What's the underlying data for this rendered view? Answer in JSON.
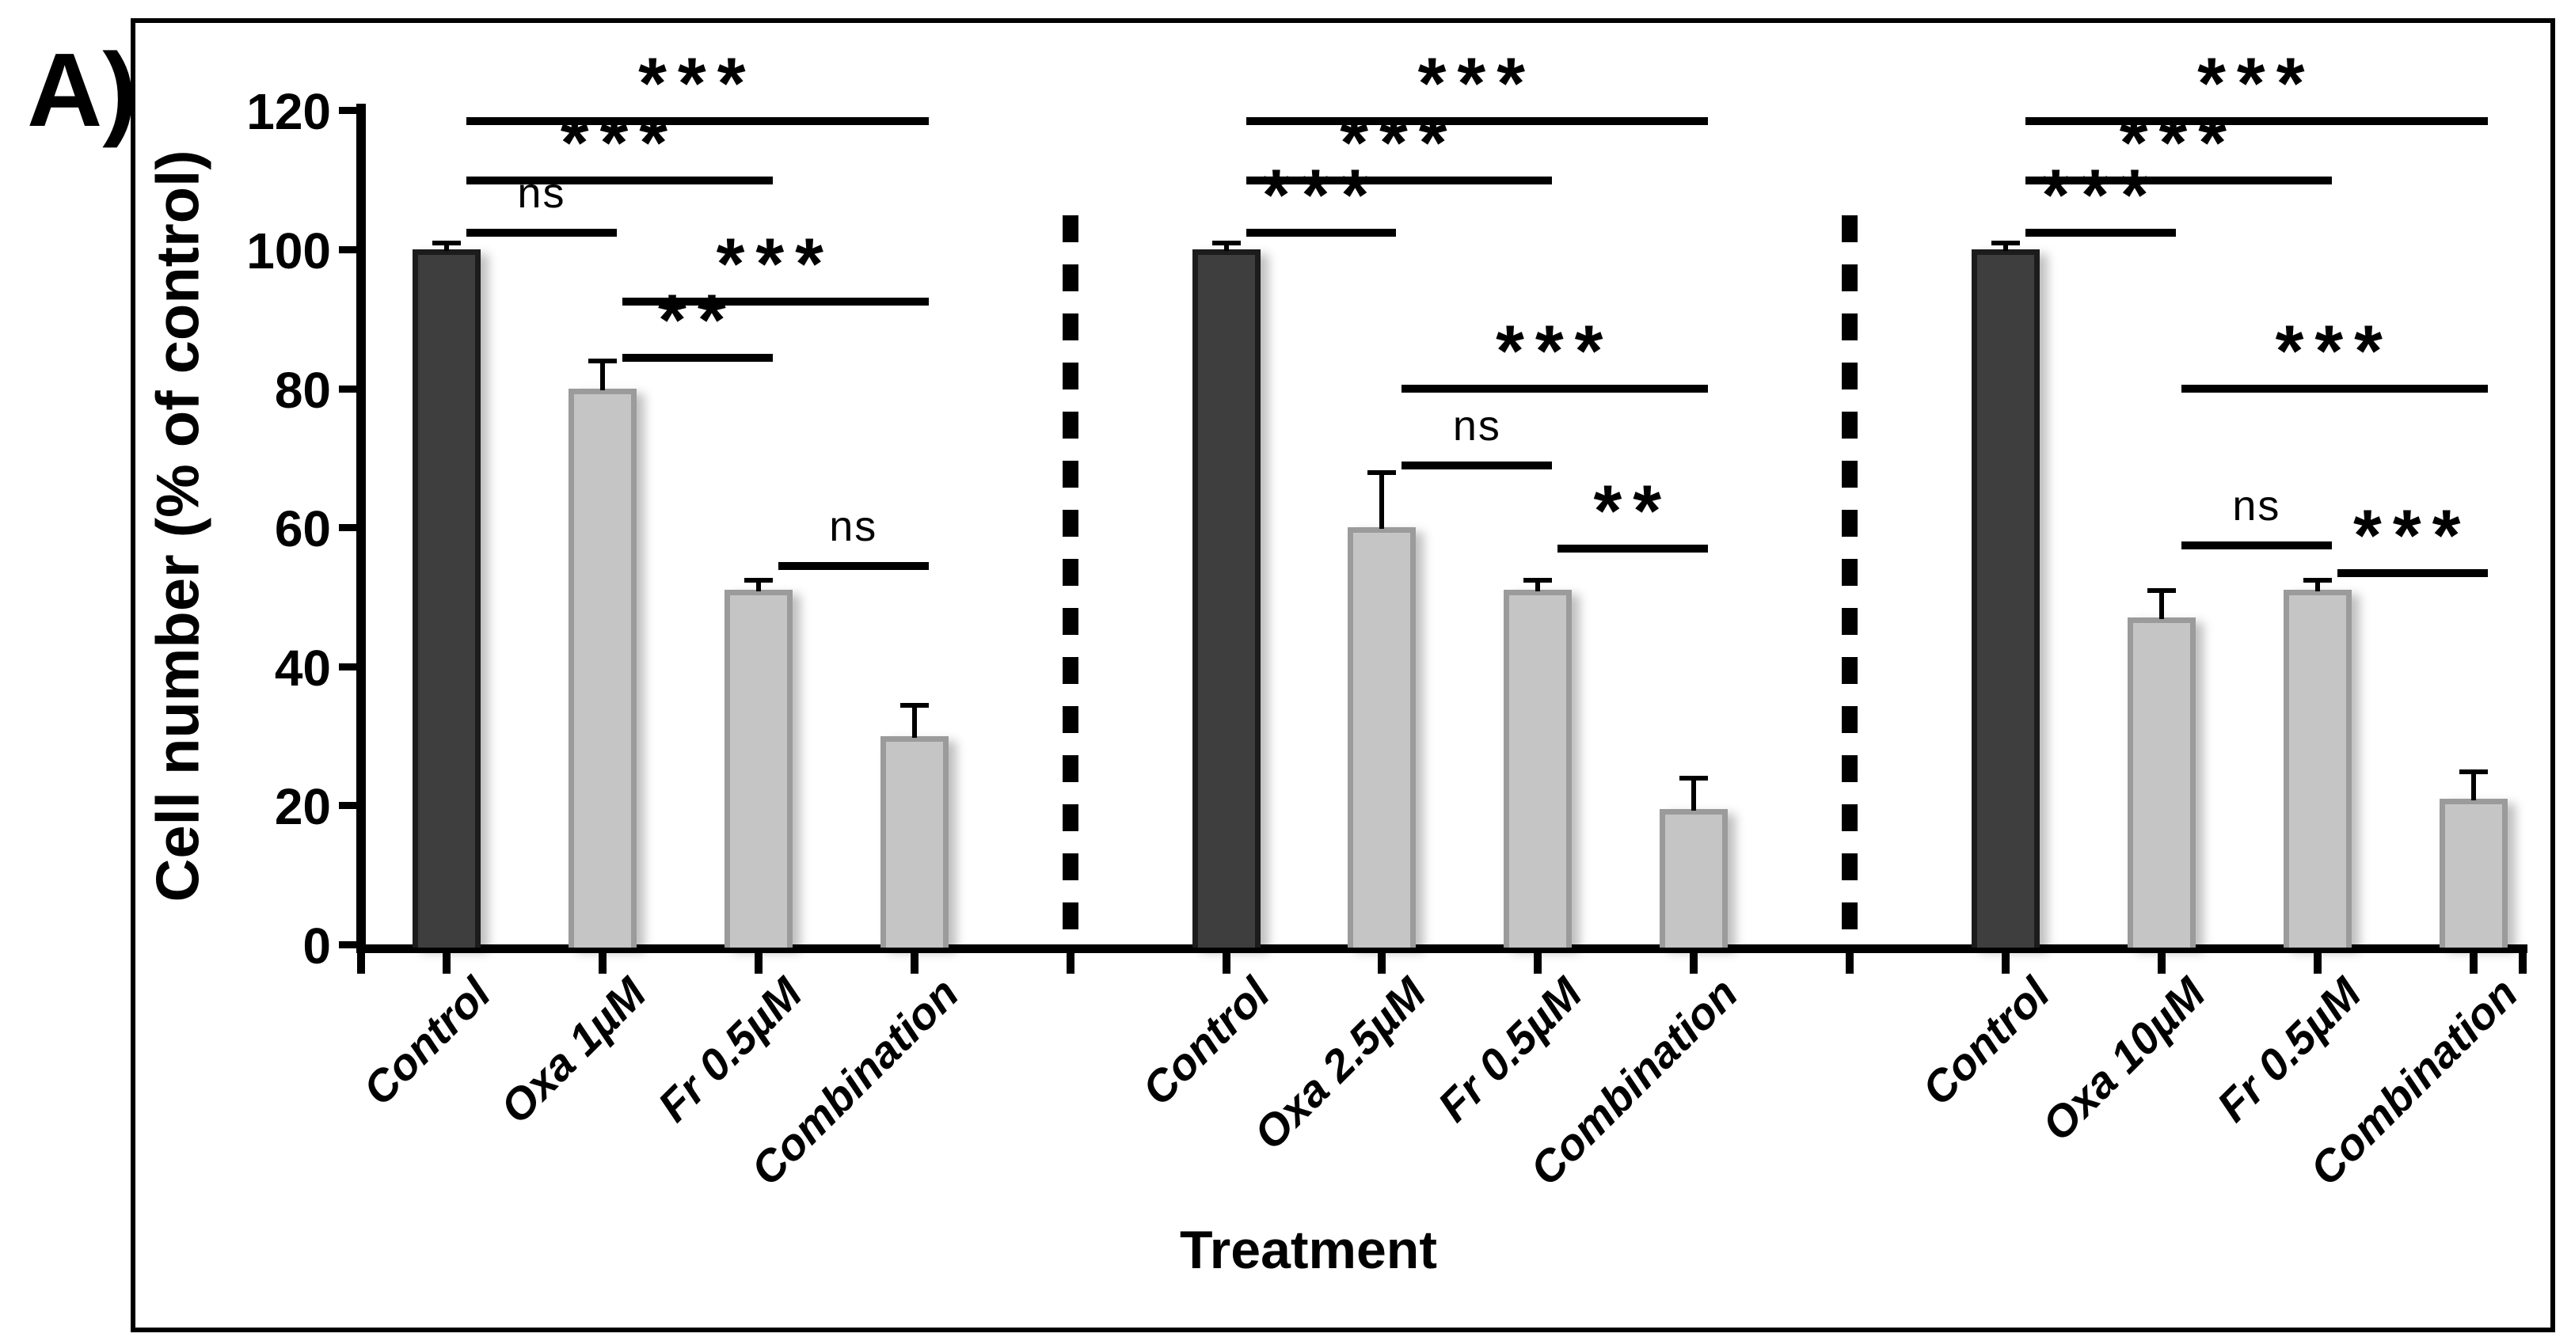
{
  "figure_label": "A)",
  "axes": {
    "y_title": "Cell number (% of control)",
    "x_title": "Treatment"
  },
  "colors": {
    "control_fill": "#3E3E3E",
    "control_border": "#1C1C1C",
    "treatment_fill": "#C5C5C5",
    "treatment_border": "#9B9B9B",
    "axis_black": "#000000"
  },
  "chart_data": {
    "type": "bar",
    "title": "",
    "xlabel": "Treatment",
    "ylabel": "Cell number (% of control)",
    "ylim": [
      0,
      120
    ],
    "yticks": [
      0,
      20,
      40,
      60,
      80,
      100,
      120
    ],
    "grid": false,
    "legend": "none",
    "group_separator_style": "vertical dashed line",
    "groups": [
      {
        "categories": [
          "Control",
          "Oxa 1µM",
          "Fr 0.5µM",
          "Combination"
        ],
        "values": [
          100,
          80,
          51,
          30
        ],
        "errors": [
          1,
          4,
          1.5,
          4.5
        ],
        "bar_roles": [
          "control",
          "treatment",
          "treatment",
          "treatment"
        ],
        "significance": [
          {
            "from": 0,
            "to": 1,
            "label": "ns",
            "height": 103
          },
          {
            "from": 0,
            "to": 2,
            "label": "***",
            "height": 110.5
          },
          {
            "from": 0,
            "to": 3,
            "label": "***",
            "height": 119
          },
          {
            "from": 1,
            "to": 2,
            "label": "**",
            "height": 85
          },
          {
            "from": 1,
            "to": 3,
            "label": "***",
            "height": 93
          },
          {
            "from": 2,
            "to": 3,
            "label": "ns",
            "height": 55
          }
        ]
      },
      {
        "categories": [
          "Control",
          "Oxa 2.5µM",
          "Fr 0.5µM",
          "Combination"
        ],
        "values": [
          100,
          60,
          51,
          19.5
        ],
        "errors": [
          1,
          8,
          1.5,
          4.5
        ],
        "bar_roles": [
          "control",
          "treatment",
          "treatment",
          "treatment"
        ],
        "significance": [
          {
            "from": 0,
            "to": 1,
            "label": "***",
            "height": 103
          },
          {
            "from": 0,
            "to": 2,
            "label": "***",
            "height": 110.5
          },
          {
            "from": 0,
            "to": 3,
            "label": "***",
            "height": 119
          },
          {
            "from": 1,
            "to": 2,
            "label": "ns",
            "height": 69.5
          },
          {
            "from": 1,
            "to": 3,
            "label": "***",
            "height": 80.5
          },
          {
            "from": 2,
            "to": 3,
            "label": "**",
            "height": 57.5
          }
        ]
      },
      {
        "categories": [
          "Control",
          "Oxa 10µM",
          "Fr 0.5µM",
          "Combination"
        ],
        "values": [
          100,
          47,
          51,
          21
        ],
        "errors": [
          1,
          4,
          1.5,
          4
        ],
        "bar_roles": [
          "control",
          "treatment",
          "treatment",
          "treatment"
        ],
        "significance": [
          {
            "from": 0,
            "to": 1,
            "label": "***",
            "height": 103
          },
          {
            "from": 0,
            "to": 2,
            "label": "***",
            "height": 110.5
          },
          {
            "from": 0,
            "to": 3,
            "label": "***",
            "height": 119
          },
          {
            "from": 1,
            "to": 2,
            "label": "ns",
            "height": 58
          },
          {
            "from": 1,
            "to": 3,
            "label": "***",
            "height": 80.5
          },
          {
            "from": 2,
            "to": 3,
            "label": "***",
            "height": 54
          }
        ]
      }
    ]
  }
}
